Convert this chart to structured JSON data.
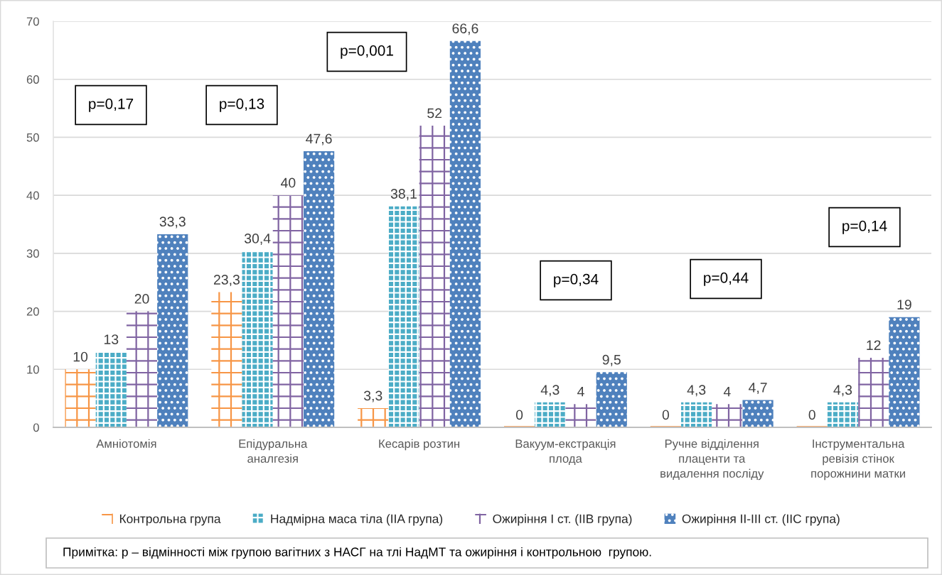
{
  "chart_data": {
    "type": "bar",
    "categories": [
      "Амніотомія",
      "Епідуральна\nаналгезія",
      "Кесарів розтин",
      "Вакуум-екстракція\nплода",
      "Ручне відділення\nплаценти та\nвидалення посліду",
      "Інструментальна\nревізія стінок\nпорожнини матки"
    ],
    "series": [
      {
        "name": "Контрольна група",
        "color": "#f79646",
        "values": [
          10,
          23.3,
          3.3,
          0,
          0,
          0
        ],
        "value_labels": [
          "10",
          "23,3",
          "3,3",
          "0",
          "0",
          "0"
        ]
      },
      {
        "name": "Надмірна маса тіла (IIA група)",
        "color": "#4bacc6",
        "values": [
          13,
          30.4,
          38.1,
          4.3,
          4.3,
          4.3
        ],
        "value_labels": [
          "13",
          "30,4",
          "38,1",
          "4,3",
          "4,3",
          "4,3"
        ]
      },
      {
        "name": "Ожиріння І ст. (IIB група)",
        "color": "#8064a2",
        "values": [
          20,
          40,
          52,
          4,
          4,
          12
        ],
        "value_labels": [
          "20",
          "40",
          "52",
          "4",
          "4",
          "12"
        ]
      },
      {
        "name": "Ожиріння ІІ-ІІІ ст. (ІІС група)",
        "color": "#4f81bd",
        "values": [
          33.3,
          47.6,
          66.6,
          9.5,
          4.7,
          19
        ],
        "value_labels": [
          "33,3",
          "47,6",
          "66,6",
          "9,5",
          "4,7",
          "19"
        ]
      }
    ],
    "ylim": [
      0,
      70
    ],
    "yticks": [
      0,
      10,
      20,
      30,
      40,
      50,
      60,
      70
    ],
    "grid": "y",
    "legend": "bottom",
    "annotations": [
      "p=0,17",
      "p=0,13",
      "p=0,001",
      "p=0,34",
      "p=0,44",
      "p=0,14",
      "Примітка: p – відмінності між групою вагітних з НАСГ на тлі НадМТ та ожиріння і контрольною  групою."
    ]
  }
}
